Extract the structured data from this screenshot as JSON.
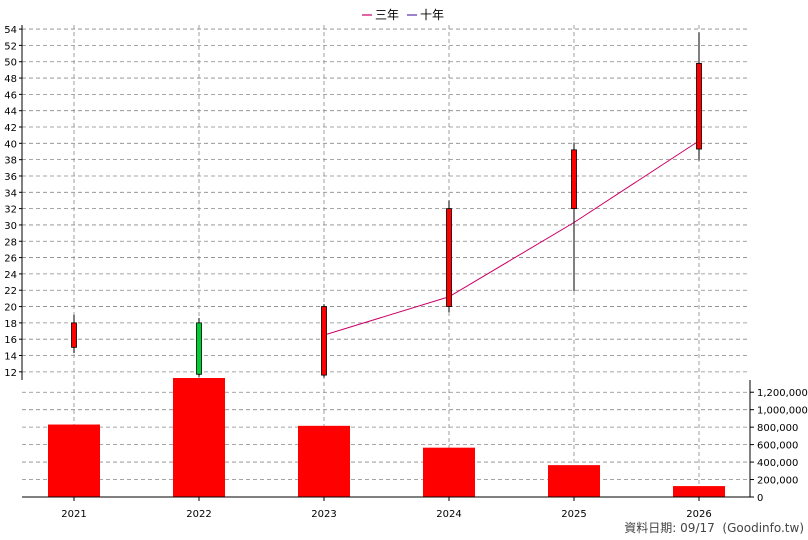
{
  "legend": {
    "ma3_label": "三年",
    "ma10_label": "十年"
  },
  "footer": {
    "date_prefix": "資料日期:",
    "date": "09/17",
    "source": "(Goodinfo.tw)"
  },
  "colors": {
    "up": "#ff0000",
    "down": "#00cc33",
    "ma3": "#cc0066",
    "ma10": "#5a2ea6",
    "volume": "#ff0000"
  },
  "chart_data": [
    {
      "type": "candlestick",
      "title": "",
      "categories": [
        "2021",
        "2022",
        "2023",
        "2024",
        "2025",
        "2026"
      ],
      "ylim": [
        11,
        54.5
      ],
      "yticks": [
        12,
        14,
        16,
        18,
        20,
        22,
        24,
        26,
        28,
        30,
        32,
        34,
        36,
        38,
        40,
        42,
        44,
        46,
        48,
        50,
        52,
        54
      ],
      "grid": true,
      "legend_position": "top-center",
      "candles": [
        {
          "x": "2021",
          "open": 15.0,
          "close": 18.0,
          "high": 19.0,
          "low": 14.3,
          "direction": "up"
        },
        {
          "x": "2022",
          "open": 18.0,
          "close": 11.7,
          "high": 18.6,
          "low": 11.4,
          "direction": "down"
        },
        {
          "x": "2023",
          "open": 11.6,
          "close": 20.0,
          "high": 20.3,
          "low": 11.3,
          "direction": "up"
        },
        {
          "x": "2024",
          "open": 20.0,
          "close": 32.0,
          "high": 33.0,
          "low": 19.3,
          "direction": "up"
        },
        {
          "x": "2025",
          "open": 32.0,
          "close": 39.2,
          "high": 40.1,
          "low": 21.9,
          "direction": "up"
        },
        {
          "x": "2026",
          "open": 39.3,
          "close": 49.8,
          "high": 53.6,
          "low": 37.9,
          "direction": "up"
        }
      ],
      "series": [
        {
          "name": "三年",
          "x": [
            "2023",
            "2024",
            "2025",
            "2026"
          ],
          "values": [
            16.5,
            21.2,
            30.3,
            40.3
          ]
        },
        {
          "name": "十年",
          "x": [],
          "values": []
        }
      ]
    },
    {
      "type": "bar",
      "title": "",
      "categories": [
        "2021",
        "2022",
        "2023",
        "2024",
        "2025",
        "2026"
      ],
      "values": [
        830000,
        1400000,
        815000,
        565000,
        365000,
        125000
      ],
      "ylim": [
        0,
        1340000
      ],
      "yticks": [
        0,
        200000,
        400000,
        600000,
        800000,
        1000000,
        1200000
      ],
      "ytick_labels": [
        "0",
        "200,000",
        "400,000",
        "600,000",
        "800,000",
        "1,000,000",
        "1,200,000"
      ]
    }
  ]
}
